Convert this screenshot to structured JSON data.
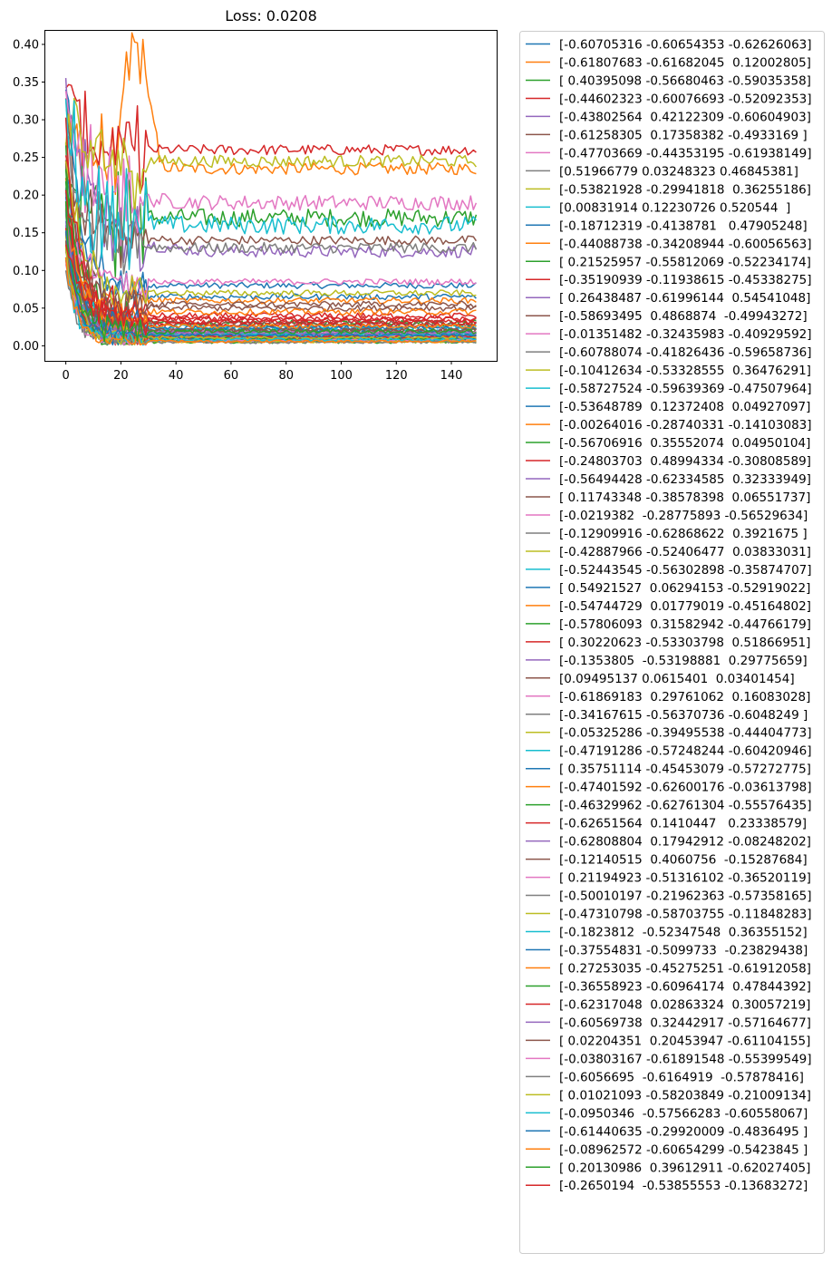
{
  "chart_data": {
    "type": "line",
    "title": "Loss: 0.0208",
    "xlabel": "",
    "ylabel": "",
    "xlim": [
      -7.45,
      156.45
    ],
    "ylim": [
      -0.02,
      0.418
    ],
    "x_ticks": [
      0,
      20,
      40,
      60,
      80,
      100,
      120,
      140
    ],
    "x_tick_labels": [
      "0",
      "20",
      "40",
      "60",
      "80",
      "100",
      "120",
      "140"
    ],
    "y_ticks": [
      0.0,
      0.05,
      0.1,
      0.15,
      0.2,
      0.25,
      0.3,
      0.35,
      0.4
    ],
    "y_tick_labels": [
      "0.00",
      "0.05",
      "0.10",
      "0.15",
      "0.20",
      "0.25",
      "0.30",
      "0.35",
      "0.40"
    ],
    "n_points": 150,
    "grid": false,
    "legend_position": "outside-right",
    "palette": [
      "#1f77b4",
      "#ff7f0e",
      "#2ca02c",
      "#d62728",
      "#9467bd",
      "#8c564b",
      "#e377c2",
      "#7f7f7f",
      "#bcbd22",
      "#17becf"
    ],
    "series": [
      {
        "name": "[-0.60705316 -0.60654353 -0.62626063]",
        "start": 0.35,
        "end": 0.08,
        "decay": 5,
        "noise": 0.004
      },
      {
        "name": "[-0.61807683 -0.61682045  0.12002805]",
        "start": 0.3,
        "end": 0.235,
        "decay": 8,
        "noise": 0.008,
        "bump": [
          0.39,
          26,
          6
        ]
      },
      {
        "name": "[ 0.40395098 -0.56680463 -0.59035358]",
        "start": 0.26,
        "end": 0.17,
        "decay": 6,
        "noise": 0.012
      },
      {
        "name": "[-0.44602323 -0.60076693 -0.52092353]",
        "start": 0.38,
        "end": 0.26,
        "decay": 4,
        "noise": 0.007
      },
      {
        "name": "[-0.43802564  0.42122309 -0.60604903]",
        "start": 0.34,
        "end": 0.125,
        "decay": 10,
        "noise": 0.008
      },
      {
        "name": "[-0.61258305  0.17358382 -0.4933169 ]",
        "start": 0.28,
        "end": 0.14,
        "decay": 6,
        "noise": 0.006
      },
      {
        "name": "[-0.47703669 -0.44353195 -0.61938149]",
        "start": 0.32,
        "end": 0.19,
        "decay": 9,
        "noise": 0.01
      },
      {
        "name": "[0.51966779 0.03248323 0.46845381]",
        "start": 0.25,
        "end": 0.13,
        "decay": 7,
        "noise": 0.007
      },
      {
        "name": "[-0.53821928 -0.29941818  0.36255186]",
        "start": 0.3,
        "end": 0.245,
        "decay": 6,
        "noise": 0.008
      },
      {
        "name": "[0.00831914 0.12230726 0.520544  ]",
        "start": 0.27,
        "end": 0.16,
        "decay": 8,
        "noise": 0.012
      },
      {
        "name": "[-0.18712319 -0.4138781   0.47905248]",
        "start": 0.22,
        "end": 0.065,
        "decay": 6,
        "noise": 0.004
      },
      {
        "name": "[-0.44088738 -0.34208944 -0.60056563]",
        "start": 0.2,
        "end": 0.06,
        "decay": 5,
        "noise": 0.004
      },
      {
        "name": "[ 0.21525957 -0.55812069 -0.52234174]",
        "start": 0.25,
        "end": 0.03,
        "decay": 5,
        "noise": 0.004
      },
      {
        "name": "[-0.35190939 -0.11938615 -0.45338275]",
        "start": 0.3,
        "end": 0.04,
        "decay": 4,
        "noise": 0.004
      },
      {
        "name": "[ 0.26438487 -0.61996144  0.54541048]",
        "start": 0.18,
        "end": 0.02,
        "decay": 5,
        "noise": 0.003
      },
      {
        "name": "[-0.58693495  0.4868874  -0.49943272]",
        "start": 0.22,
        "end": 0.05,
        "decay": 6,
        "noise": 0.004
      },
      {
        "name": "[-0.01351482 -0.32435983 -0.40929592]",
        "start": 0.15,
        "end": 0.085,
        "decay": 5,
        "noise": 0.004
      },
      {
        "name": "[-0.60788074 -0.41826436 -0.59658736]",
        "start": 0.2,
        "end": 0.012,
        "decay": 5,
        "noise": 0.003
      },
      {
        "name": "[-0.10412634 -0.53328555  0.36476291]",
        "start": 0.24,
        "end": 0.07,
        "decay": 6,
        "noise": 0.004
      },
      {
        "name": "[-0.58727524 -0.59639369 -0.47507964]",
        "start": 0.19,
        "end": 0.025,
        "decay": 5,
        "noise": 0.003
      },
      {
        "name": "[-0.53648789  0.12372408  0.04927097]",
        "start": 0.21,
        "end": 0.015,
        "decay": 4,
        "noise": 0.003
      },
      {
        "name": "[-0.00264016 -0.28740331 -0.14103083]",
        "start": 0.17,
        "end": 0.045,
        "decay": 5,
        "noise": 0.004
      },
      {
        "name": "[-0.56706916  0.35552074  0.04950104]",
        "start": 0.23,
        "end": 0.02,
        "decay": 5,
        "noise": 0.003
      },
      {
        "name": "[-0.24803703  0.48994334 -0.30808589]",
        "start": 0.26,
        "end": 0.035,
        "decay": 6,
        "noise": 0.004
      },
      {
        "name": "[-0.56494428 -0.62334585  0.32333949]",
        "start": 0.16,
        "end": 0.01,
        "decay": 4,
        "noise": 0.002
      },
      {
        "name": "[ 0.11743348 -0.38578398  0.06551737]",
        "start": 0.14,
        "end": 0.03,
        "decay": 5,
        "noise": 0.003
      },
      {
        "name": "[-0.0219382  -0.28775893 -0.56529634]",
        "start": 0.12,
        "end": 0.008,
        "decay": 4,
        "noise": 0.002
      },
      {
        "name": "[-0.12909916 -0.62868622  0.3921675 ]",
        "start": 0.15,
        "end": 0.012,
        "decay": 4,
        "noise": 0.002
      },
      {
        "name": "[-0.42887966 -0.52406477  0.03833031]",
        "start": 0.18,
        "end": 0.006,
        "decay": 4,
        "noise": 0.002
      },
      {
        "name": "[-0.52443545 -0.56302898 -0.35874707]",
        "start": 0.13,
        "end": 0.022,
        "decay": 5,
        "noise": 0.003
      },
      {
        "name": "[ 0.54921527  0.06294153 -0.52919022]",
        "start": 0.2,
        "end": 0.018,
        "decay": 5,
        "noise": 0.003
      },
      {
        "name": "[-0.54744729  0.01779019 -0.45164802]",
        "start": 0.17,
        "end": 0.01,
        "decay": 4,
        "noise": 0.002
      },
      {
        "name": "[-0.57806093  0.31582942 -0.44766179]",
        "start": 0.22,
        "end": 0.014,
        "decay": 4,
        "noise": 0.002
      },
      {
        "name": "[ 0.30220623 -0.53303798  0.51866951]",
        "start": 0.19,
        "end": 0.028,
        "decay": 5,
        "noise": 0.003
      },
      {
        "name": "[-0.1353805  -0.53198881  0.29775659]",
        "start": 0.14,
        "end": 0.009,
        "decay": 4,
        "noise": 0.002
      },
      {
        "name": "[0.09495137 0.0615401  0.03401454]",
        "start": 0.16,
        "end": 0.055,
        "decay": 6,
        "noise": 0.004
      },
      {
        "name": "[-0.61869183  0.29761062  0.16083028]",
        "start": 0.12,
        "end": 0.012,
        "decay": 4,
        "noise": 0.002
      },
      {
        "name": "[-0.34167615 -0.56370736 -0.6048249 ]",
        "start": 0.11,
        "end": 0.007,
        "decay": 4,
        "noise": 0.002
      },
      {
        "name": "[-0.05325286 -0.39495538 -0.44404773]",
        "start": 0.15,
        "end": 0.011,
        "decay": 4,
        "noise": 0.002
      },
      {
        "name": "[-0.47191286 -0.57248244 -0.60420946]",
        "start": 0.13,
        "end": 0.016,
        "decay": 4,
        "noise": 0.002
      },
      {
        "name": "[ 0.35751114 -0.45453079 -0.57272775]",
        "start": 0.18,
        "end": 0.024,
        "decay": 5,
        "noise": 0.003
      },
      {
        "name": "[-0.47401592 -0.62600176 -0.03613798]",
        "start": 0.14,
        "end": 0.01,
        "decay": 4,
        "noise": 0.002
      },
      {
        "name": "[-0.46329962 -0.62761304 -0.55576435]",
        "start": 0.12,
        "end": 0.005,
        "decay": 4,
        "noise": 0.002
      },
      {
        "name": "[-0.62651564  0.1410447   0.23338579]",
        "start": 0.21,
        "end": 0.032,
        "decay": 5,
        "noise": 0.003
      },
      {
        "name": "[-0.62808804  0.17942912 -0.08248202]",
        "start": 0.16,
        "end": 0.013,
        "decay": 4,
        "noise": 0.002
      },
      {
        "name": "[-0.12140515  0.4060756  -0.15287684]",
        "start": 0.15,
        "end": 0.02,
        "decay": 5,
        "noise": 0.003
      },
      {
        "name": "[ 0.21194923 -0.51316102 -0.36520119]",
        "start": 0.13,
        "end": 0.018,
        "decay": 4,
        "noise": 0.002
      },
      {
        "name": "[-0.50010197 -0.21962363 -0.57358165]",
        "start": 0.11,
        "end": 0.008,
        "decay": 4,
        "noise": 0.002
      },
      {
        "name": "[-0.47310798 -0.58703755 -0.11848283]",
        "start": 0.14,
        "end": 0.006,
        "decay": 4,
        "noise": 0.002
      },
      {
        "name": "[-0.1823812  -0.52347548  0.36355152]",
        "start": 0.17,
        "end": 0.015,
        "decay": 4,
        "noise": 0.002
      },
      {
        "name": "[-0.37554831 -0.5099733  -0.23829438]",
        "start": 0.12,
        "end": 0.01,
        "decay": 4,
        "noise": 0.002
      },
      {
        "name": "[ 0.27253035 -0.45275251 -0.61912058]",
        "start": 0.19,
        "end": 0.026,
        "decay": 5,
        "noise": 0.003
      },
      {
        "name": "[-0.36558923 -0.60964174  0.47844392]",
        "start": 0.13,
        "end": 0.009,
        "decay": 4,
        "noise": 0.002
      },
      {
        "name": "[-0.62317048  0.02863324  0.30057219]",
        "start": 0.15,
        "end": 0.012,
        "decay": 4,
        "noise": 0.002
      },
      {
        "name": "[-0.60569738  0.32442917 -0.57164677]",
        "start": 0.18,
        "end": 0.017,
        "decay": 4,
        "noise": 0.002
      },
      {
        "name": "[ 0.02204351  0.20453947 -0.61104155]",
        "start": 0.14,
        "end": 0.021,
        "decay": 5,
        "noise": 0.003
      },
      {
        "name": "[-0.03803167 -0.61891548 -0.55399549]",
        "start": 0.11,
        "end": 0.007,
        "decay": 4,
        "noise": 0.002
      },
      {
        "name": "[-0.6056695  -0.6164919  -0.57878416]",
        "start": 0.1,
        "end": 0.005,
        "decay": 4,
        "noise": 0.002
      },
      {
        "name": "[ 0.01021093 -0.58203849 -0.21009134]",
        "start": 0.13,
        "end": 0.011,
        "decay": 4,
        "noise": 0.002
      },
      {
        "name": "[-0.0950346  -0.57566283 -0.60558067]",
        "start": 0.12,
        "end": 0.008,
        "decay": 4,
        "noise": 0.002
      },
      {
        "name": "[-0.61440635 -0.29920009 -0.4836495 ]",
        "start": 0.16,
        "end": 0.014,
        "decay": 4,
        "noise": 0.002
      },
      {
        "name": "[-0.08962572 -0.60654299 -0.5423845 ]",
        "start": 0.11,
        "end": 0.006,
        "decay": 4,
        "noise": 0.002
      },
      {
        "name": "[ 0.20130986  0.39612911 -0.62027405]",
        "start": 0.17,
        "end": 0.019,
        "decay": 4,
        "noise": 0.003
      },
      {
        "name": "[-0.2650194  -0.53855553 -0.13683272]",
        "start": 0.15,
        "end": 0.036,
        "decay": 5,
        "noise": 0.003
      }
    ]
  }
}
